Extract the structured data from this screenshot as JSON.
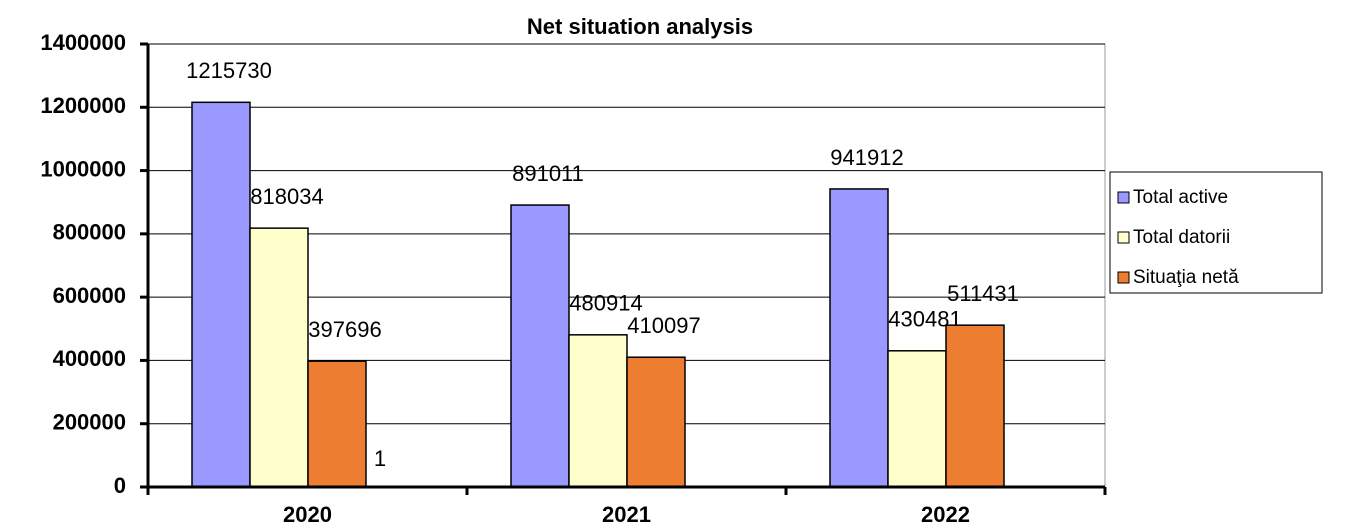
{
  "chart_data": {
    "type": "bar",
    "title": "Net situation analysis",
    "categories": [
      "2020",
      "2021",
      "2022"
    ],
    "series": [
      {
        "name": "Total active",
        "color": "#9999ff",
        "values": [
          1215730,
          891011,
          941912
        ]
      },
      {
        "name": "Total datorii",
        "color": "#ffffcc",
        "values": [
          818034,
          480914,
          430481
        ]
      },
      {
        "name": "Situaţia netă",
        "color": "#ed7d31",
        "values": [
          397696,
          410097,
          511431
        ]
      }
    ],
    "annotations": [
      "1"
    ],
    "ylim": [
      0,
      1400000
    ],
    "yticks": [
      0,
      200000,
      400000,
      600000,
      800000,
      1000000,
      1200000,
      1400000
    ],
    "grid": true,
    "legend": "right"
  }
}
